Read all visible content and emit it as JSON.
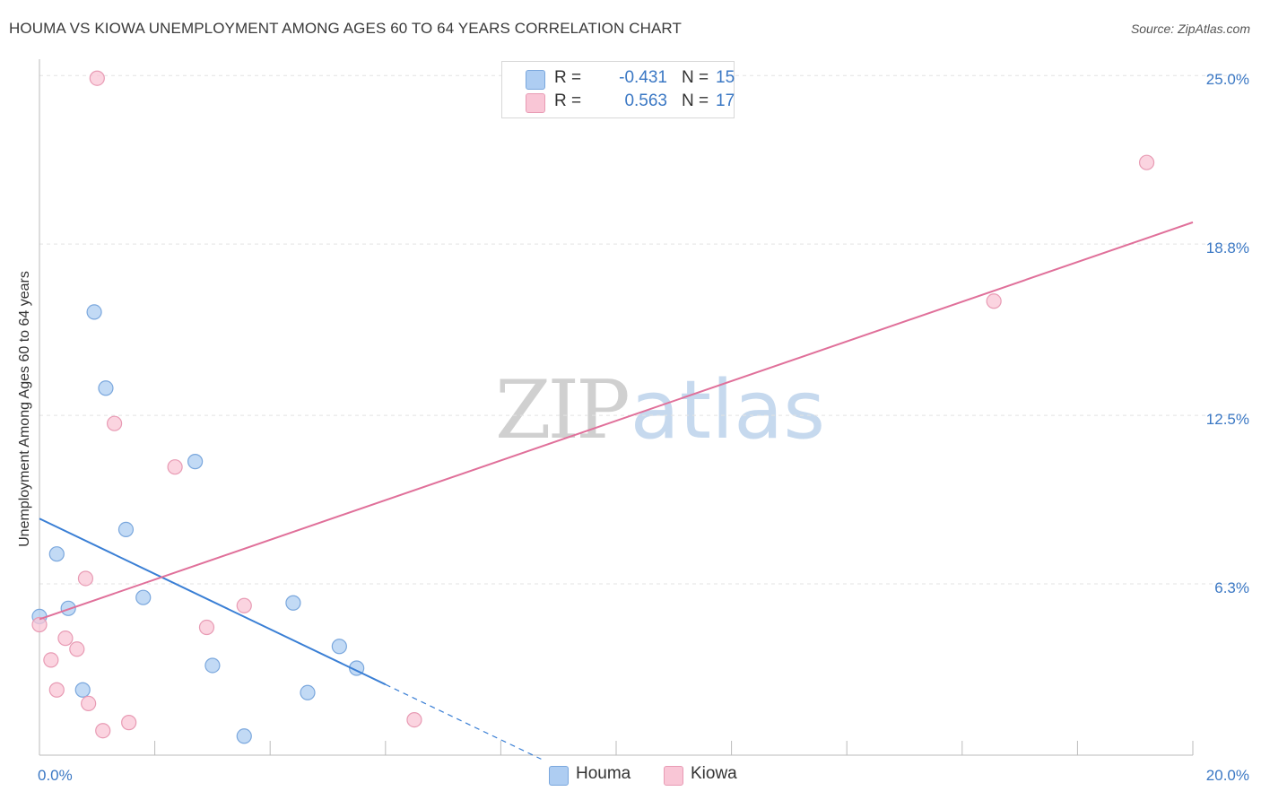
{
  "header": {
    "title": "HOUMA VS KIOWA UNEMPLOYMENT AMONG AGES 60 TO 64 YEARS CORRELATION CHART",
    "source": "Source: ZipAtlas.com"
  },
  "watermark": {
    "part1": "ZIP",
    "part2": "atlas"
  },
  "legend": {
    "items": [
      {
        "r_label": "R =",
        "r_value": "-0.431",
        "n_label": "N =",
        "n_value": "15",
        "color": "#aecdf2",
        "border": "#7aa7dd"
      },
      {
        "r_label": "R =",
        "r_value": "0.563",
        "n_label": "N =",
        "n_value": "17",
        "color": "#f9c6d6",
        "border": "#e89bb4"
      }
    ]
  },
  "bottom_legend": [
    {
      "label": "Houma",
      "color": "#aecdf2",
      "border": "#7aa7dd"
    },
    {
      "label": "Kiowa",
      "color": "#f9c6d6",
      "border": "#e89bb4"
    }
  ],
  "chart_data": {
    "type": "scatter",
    "title": "HOUMA VS KIOWA UNEMPLOYMENT AMONG AGES 60 TO 64 YEARS CORRELATION CHART",
    "xlabel": "",
    "ylabel": "Unemployment Among Ages 60 to 64 years",
    "xlim": [
      0,
      20
    ],
    "ylim": [
      0,
      25.6
    ],
    "x_tick_labels": [
      {
        "value": 0,
        "label": "0.0%"
      },
      {
        "value": 20,
        "label": "20.0%"
      }
    ],
    "y_tick_labels": [
      {
        "value": 6.3,
        "label": "6.3%"
      },
      {
        "value": 12.5,
        "label": "12.5%"
      },
      {
        "value": 18.8,
        "label": "18.8%"
      },
      {
        "value": 25.0,
        "label": "25.0%"
      }
    ],
    "grid": true,
    "series": [
      {
        "name": "Houma",
        "color": "#aecdf2",
        "stroke": "#7aa7dd",
        "line_color": "#3a7fd5",
        "points": [
          {
            "x": 0.0,
            "y": 5.1
          },
          {
            "x": 0.3,
            "y": 7.4
          },
          {
            "x": 0.5,
            "y": 5.4
          },
          {
            "x": 0.75,
            "y": 2.4
          },
          {
            "x": 0.95,
            "y": 16.3
          },
          {
            "x": 1.15,
            "y": 13.5
          },
          {
            "x": 1.5,
            "y": 8.3
          },
          {
            "x": 1.8,
            "y": 5.8
          },
          {
            "x": 2.7,
            "y": 10.8
          },
          {
            "x": 3.0,
            "y": 3.3
          },
          {
            "x": 3.55,
            "y": 0.7
          },
          {
            "x": 4.4,
            "y": 5.6
          },
          {
            "x": 4.65,
            "y": 2.3
          },
          {
            "x": 5.2,
            "y": 4.0
          },
          {
            "x": 5.5,
            "y": 3.2
          }
        ],
        "trend": {
          "x0": 0,
          "y0": 8.7,
          "x1": 6.0,
          "y1": 2.6,
          "dash_to_x": 8.7
        }
      },
      {
        "name": "Kiowa",
        "color": "#f9c6d6",
        "stroke": "#e89bb4",
        "line_color": "#e0709a",
        "points": [
          {
            "x": 0.0,
            "y": 4.8
          },
          {
            "x": 0.2,
            "y": 3.5
          },
          {
            "x": 0.3,
            "y": 2.4
          },
          {
            "x": 0.45,
            "y": 4.3
          },
          {
            "x": 0.65,
            "y": 3.9
          },
          {
            "x": 0.85,
            "y": 1.9
          },
          {
            "x": 0.8,
            "y": 6.5
          },
          {
            "x": 1.0,
            "y": 24.9
          },
          {
            "x": 1.1,
            "y": 0.9
          },
          {
            "x": 1.3,
            "y": 12.2
          },
          {
            "x": 1.55,
            "y": 1.2
          },
          {
            "x": 2.35,
            "y": 10.6
          },
          {
            "x": 2.9,
            "y": 4.7
          },
          {
            "x": 3.55,
            "y": 5.5
          },
          {
            "x": 6.5,
            "y": 1.3
          },
          {
            "x": 16.55,
            "y": 16.7
          },
          {
            "x": 19.2,
            "y": 21.8
          }
        ],
        "trend": {
          "x0": 0,
          "y0": 5.0,
          "x1": 20,
          "y1": 19.6
        }
      }
    ]
  }
}
